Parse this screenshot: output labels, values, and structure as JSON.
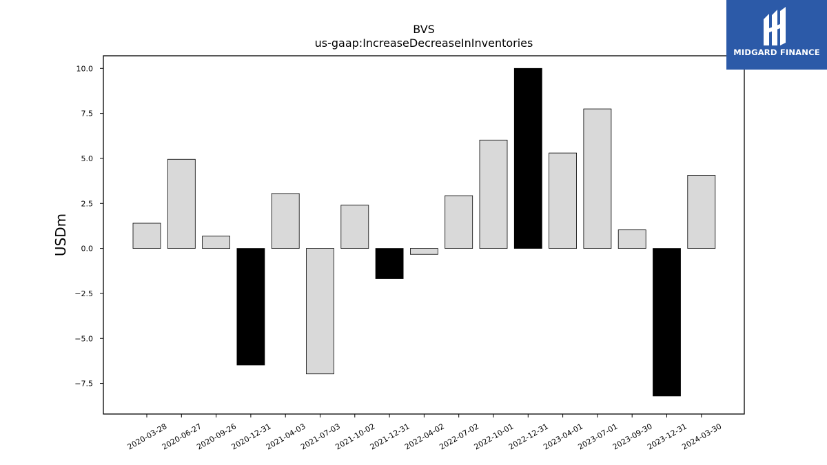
{
  "chart_data": {
    "type": "bar",
    "title": "BVS",
    "subtitle": "us-gaap:IncreaseDecreaseInInventories",
    "xlabel": "",
    "ylabel": "USDm",
    "categories": [
      "2020-03-28",
      "2020-06-27",
      "2020-09-26",
      "2020-12-31",
      "2021-04-03",
      "2021-07-03",
      "2021-10-02",
      "2021-12-31",
      "2022-04-02",
      "2022-07-02",
      "2022-10-01",
      "2022-12-31",
      "2023-04-01",
      "2023-07-01",
      "2023-09-30",
      "2023-12-31",
      "2024-03-30"
    ],
    "values": [
      1.4,
      4.95,
      0.68,
      -6.48,
      3.05,
      -6.97,
      2.4,
      -1.68,
      -0.33,
      2.93,
      6.02,
      10.0,
      5.3,
      7.75,
      1.03,
      -8.2,
      4.06
    ],
    "highlighted": [
      "2020-12-31",
      "2021-12-31",
      "2022-12-31",
      "2023-12-31"
    ],
    "ylim": [
      -9.2,
      10.7
    ],
    "yticks": [
      -7.5,
      -5.0,
      -2.5,
      0.0,
      2.5,
      5.0,
      7.5,
      10.0
    ],
    "ytick_labels": [
      "−7.5",
      "−5.0",
      "−2.5",
      "0.0",
      "2.5",
      "5.0",
      "7.5",
      "10.0"
    ],
    "grid": false,
    "colors": {
      "default_bar": "#d9d9d9",
      "highlight_bar": "#000000",
      "edge": "#000000"
    }
  },
  "logo": {
    "text": "MIDGARD FINANCE",
    "background": "#2c5aa8"
  }
}
